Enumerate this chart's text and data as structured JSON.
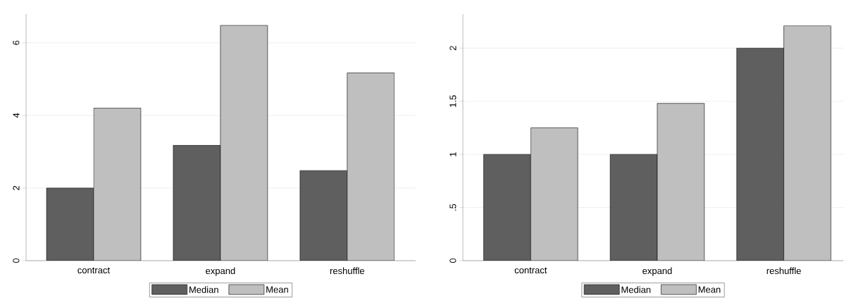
{
  "chart_data": [
    {
      "type": "bar",
      "categories": [
        "contract",
        "expand",
        "reshuffle"
      ],
      "series": [
        {
          "name": "Median",
          "color": "#5f5f5f",
          "values": [
            2.0,
            3.18,
            2.48
          ]
        },
        {
          "name": "Mean",
          "color": "#bfbfbf",
          "values": [
            4.2,
            6.48,
            5.17
          ]
        }
      ],
      "ylim": [
        0,
        6.79
      ],
      "yticks": [
        0,
        2,
        4,
        6
      ],
      "grid": "y",
      "legend": "bottom"
    },
    {
      "type": "bar",
      "categories": [
        "contract",
        "expand",
        "reshuffle"
      ],
      "series": [
        {
          "name": "Median",
          "color": "#5f5f5f",
          "values": [
            1.0,
            1.0,
            2.0
          ]
        },
        {
          "name": "Mean",
          "color": "#bfbfbf",
          "values": [
            1.25,
            1.48,
            2.21
          ]
        }
      ],
      "ylim": [
        0,
        2.32
      ],
      "yticks": [
        0,
        {
          "value": 0.5,
          "label": ".5"
        },
        1,
        1.5,
        2
      ],
      "grid": "y",
      "legend": "bottom"
    }
  ]
}
